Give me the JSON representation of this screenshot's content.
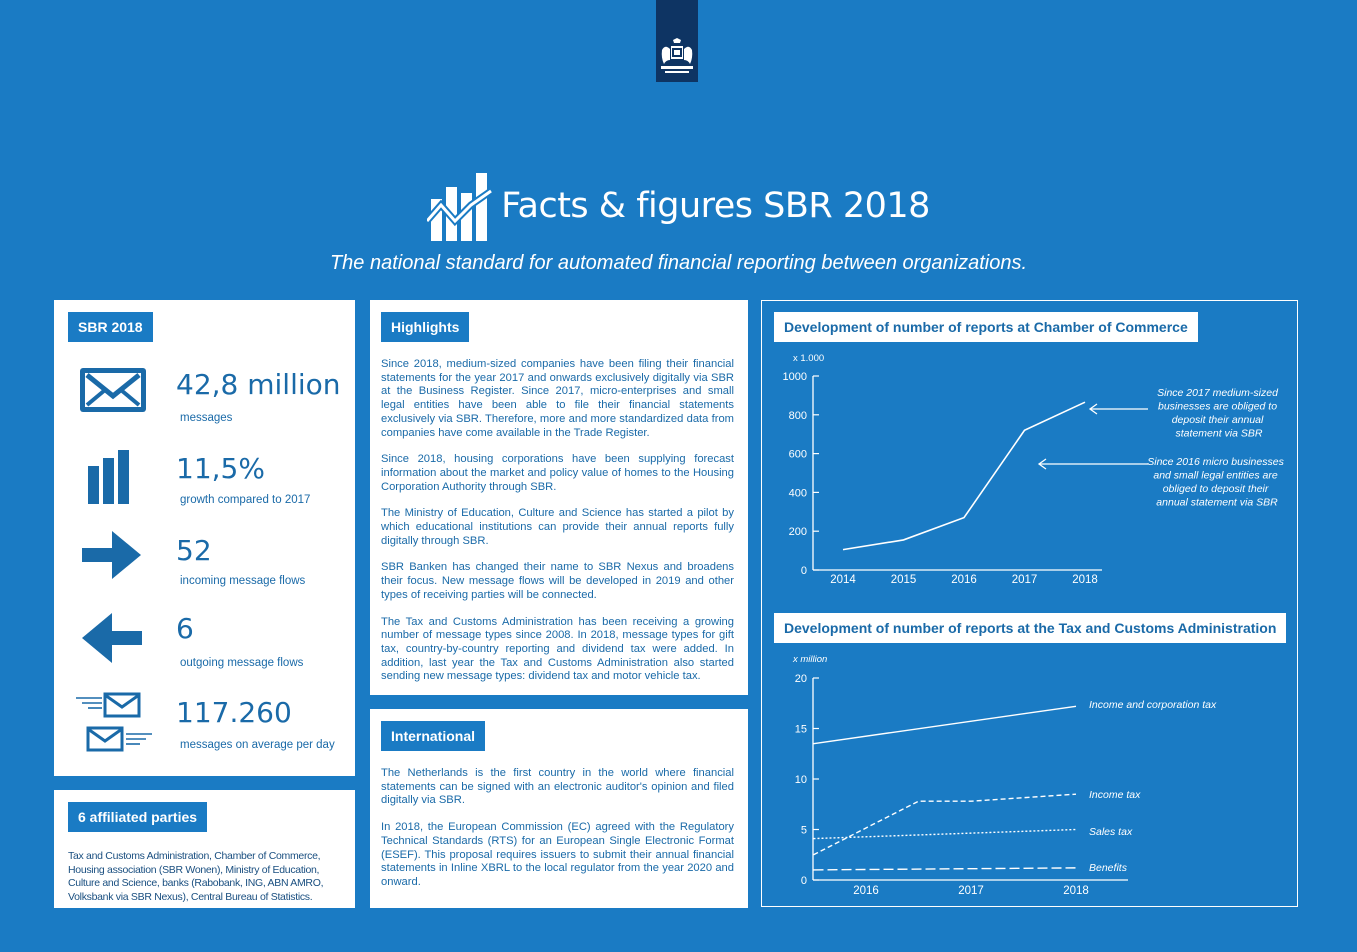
{
  "header": {
    "title": "Facts & figures SBR 2018",
    "subtitle": "The national standard for automated financial reporting between organizations."
  },
  "sbr2018": {
    "tag": "SBR 2018",
    "stats": [
      {
        "icon": "envelope-icon",
        "value": "42,8 million",
        "label": "messages"
      },
      {
        "icon": "bar-chart-icon",
        "value": "11,5%",
        "label": "growth compared to 2017"
      },
      {
        "icon": "arrow-right-icon",
        "value": "52",
        "label": "incoming message flows"
      },
      {
        "icon": "arrow-left-icon",
        "value": "6",
        "label": "outgoing message flows"
      },
      {
        "icon": "envelopes-icon",
        "value": "117.260",
        "label": "messages on average per day"
      }
    ]
  },
  "affiliated": {
    "tag": "6 affiliated parties",
    "text": "Tax and Customs Administration, Chamber of Commerce, Housing association (SBR Wonen), Ministry of Education, Culture and Science, banks (Rabobank, ING, ABN AMRO, Volksbank via SBR Nexus), Central Bureau of Statistics."
  },
  "highlights": {
    "tag": "Highlights",
    "paragraphs": [
      "Since 2018, medium-sized companies have been filing their financial statements for the year 2017 and onwards exclusively digitally via SBR at the Business Register. Since 2017, micro-enterprises and small legal entities have been able to file their financial statements exclusively via SBR. Therefore, more and more standardized data from companies have come available in the Trade Register.",
      "Since 2018, housing corporations have been supplying forecast information about the market and policy value of homes to the Housing Corporation Authority through SBR.",
      "The Ministry of Education, Culture and Science has started a pilot by which educational institutions can provide their annual reports fully digitally through SBR.",
      "SBR Banken has changed their name to SBR Nexus and broadens their focus. New message flows will be developed in 2019 and other types of receiving parties will be connected.",
      "The Tax and Customs Administration has been receiving a growing number of message types since 2008. In 2018, message types for gift tax, country-by-country reporting and dividend tax were added. In addition, last year the Tax and Customs Administration also started sending new message types: dividend tax and motor vehicle tax."
    ]
  },
  "international": {
    "tag": "International",
    "paragraphs": [
      "The Netherlands is the first country in the world where financial statements can be signed with an electronic auditor's opinion and filed digitally via SBR.",
      "In 2018, the European Commission (EC) agreed with the Regulatory Technical Standards (RTS) for an European Single Electronic Format (ESEF). This proposal requires issuers to submit their annual financial statements in Inline XBRL to the local regulator from the year 2020 and onward."
    ]
  },
  "colors": {
    "background": "#1a7bc4",
    "panel": "#ffffff",
    "text": "#1a6aa8",
    "logo_box": "#0e3463"
  },
  "chart_data": [
    {
      "type": "line",
      "title": "Development of number of reports at Chamber of Commerce",
      "ylabel": "x 1.000",
      "x": [
        "2014",
        "2015",
        "2016",
        "2017",
        "2018"
      ],
      "yticks": [
        "0",
        "200",
        "400",
        "600",
        "800",
        "1000"
      ],
      "ylim": [
        0,
        1000
      ],
      "series": [
        {
          "values": [
            105,
            155,
            270,
            720,
            865
          ]
        }
      ],
      "annotations": [
        {
          "text": "Since 2017 medium-sized businesses are obliged to deposit their annual statement via SBR",
          "points_to": "2018"
        },
        {
          "text": "Since 2016 micro businesses and small legal entities are obliged to deposit their annual statement via SBR",
          "points_to": "2017"
        }
      ]
    },
    {
      "type": "line",
      "title": "Development of number of reports at the Tax and Customs Administration",
      "ylabel": "x million",
      "x": [
        "2016",
        "2017",
        "2018"
      ],
      "yticks": [
        "0",
        "5",
        "10",
        "15",
        "20"
      ],
      "ylim": [
        0,
        20
      ],
      "series": [
        {
          "name": "Income and corporation tax",
          "style": "solid",
          "x": [
            2015.5,
            2018
          ],
          "values": [
            13.5,
            17.2
          ]
        },
        {
          "name": "Income tax",
          "style": "dashed",
          "x": [
            2015.5,
            2016.5,
            2017,
            2018
          ],
          "values": [
            2.5,
            7.8,
            7.8,
            8.5
          ]
        },
        {
          "name": "Sales tax",
          "style": "dotted",
          "x": [
            2015.5,
            2018
          ],
          "values": [
            4.1,
            5.0
          ]
        },
        {
          "name": "Benefits",
          "style": "long-dash",
          "x": [
            2015.5,
            2018
          ],
          "values": [
            1.0,
            1.2
          ]
        }
      ]
    }
  ]
}
